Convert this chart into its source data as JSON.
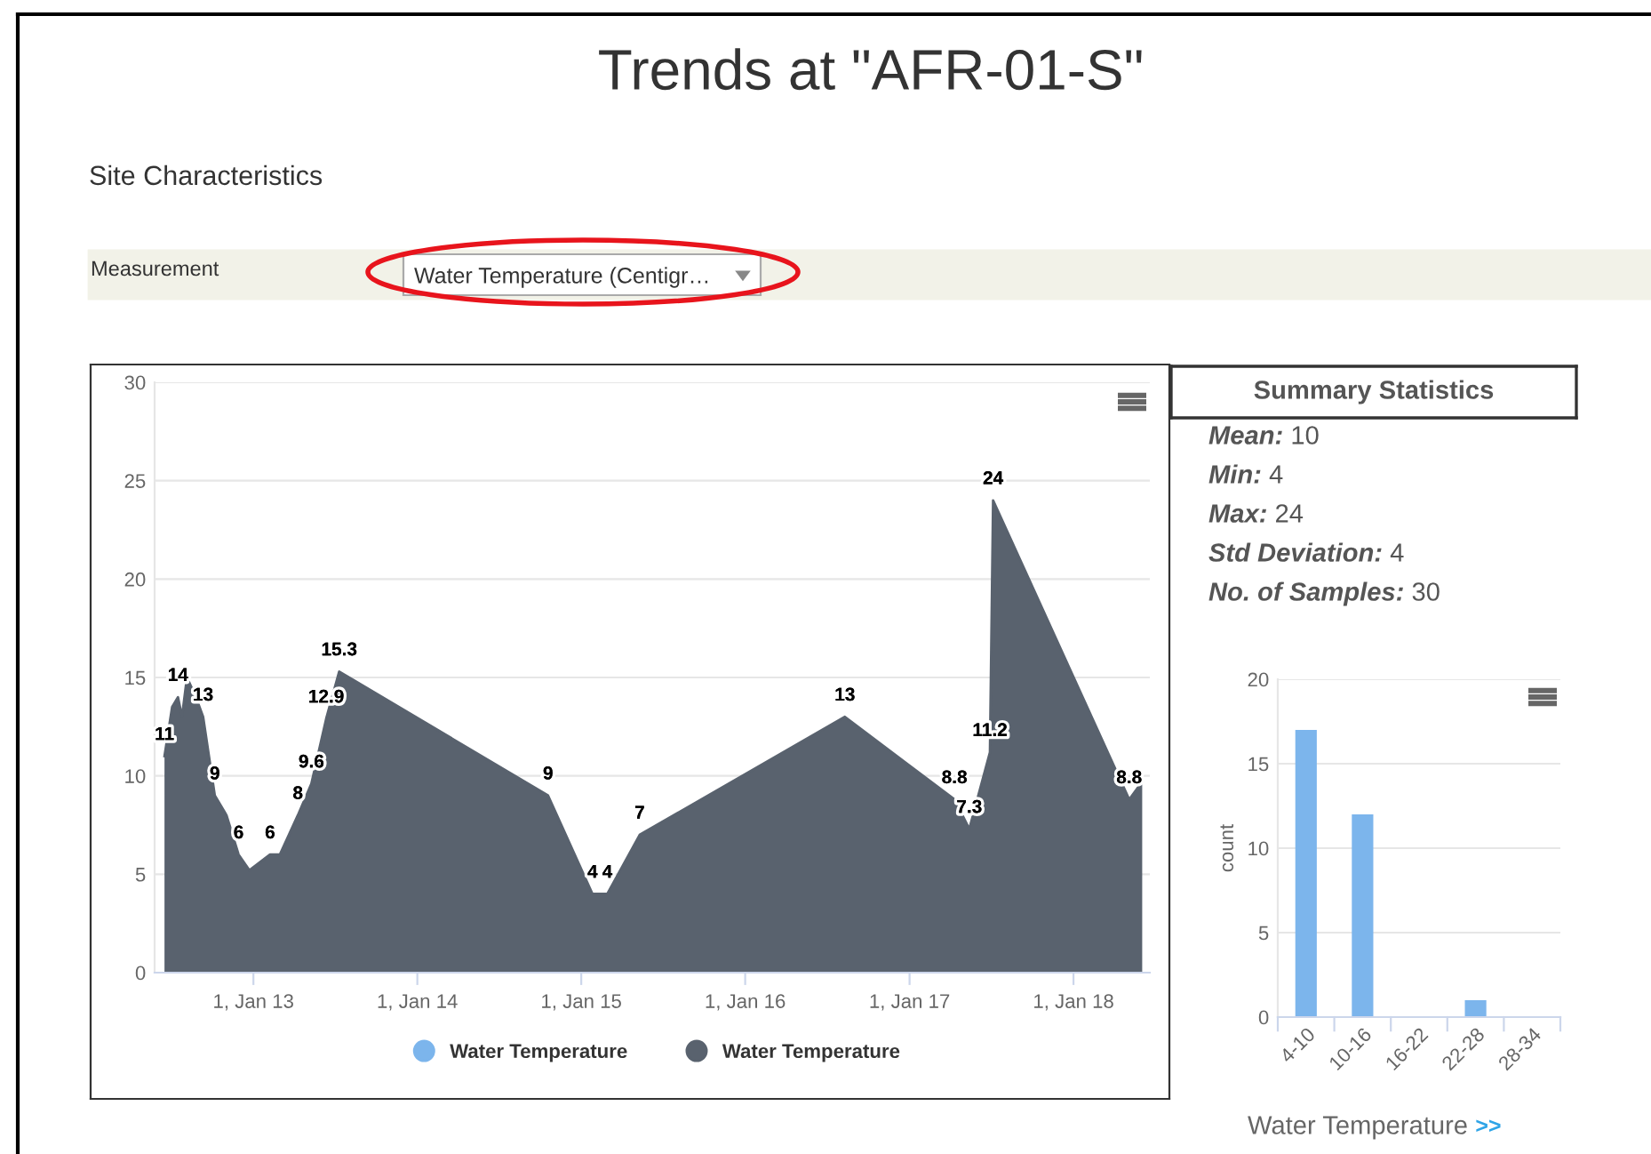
{
  "chart_data": [
    {
      "type": "other",
      "title": "Trends at \"AFR-01-S\"",
      "annotations": [
        "Site Characteristics",
        "Measurement",
        "Water Temperature (Centigr…"
      ]
    },
    {
      "type": "area",
      "x": [
        "2012-06-17",
        "2012-07-04",
        "2012-07-17",
        "2012-07-26",
        "2012-08-06",
        "2012-08-26",
        "2012-09-11",
        "2012-10-07",
        "2012-11-02",
        "2012-11-29",
        "2012-12-23",
        "2013-02-07",
        "2013-03-01",
        "2013-04-10",
        "2013-05-10",
        "2013-06-12",
        "2013-07-11",
        "2014-10-19",
        "2015-01-26",
        "2015-02-28",
        "2015-05-11",
        "2016-08-10",
        "2017-04-11",
        "2017-05-14",
        "2017-06-29",
        "2017-07-06",
        "2018-05-05",
        "2018-06-03"
      ],
      "series": [
        {
          "name": "Water Temperature",
          "color": "#7cb5ec",
          "values": [
            null,
            null,
            null,
            null,
            null,
            null,
            null,
            null,
            null,
            null,
            null,
            null,
            null,
            null,
            null,
            null,
            null,
            null,
            null,
            null,
            null,
            null,
            null,
            null,
            null,
            null,
            null,
            null
          ]
        },
        {
          "name": "Water Temperature",
          "color": "#59626e",
          "values": [
            11,
            13.5,
            14,
            13,
            15,
            14,
            13,
            9,
            8,
            6,
            5.2,
            6,
            6,
            8,
            9.6,
            12.9,
            15.3,
            9,
            4,
            4,
            7,
            13,
            8.8,
            7.3,
            11.2,
            24,
            8.8,
            9.7
          ],
          "value_labels": [
            "11",
            null,
            "14",
            null,
            null,
            null,
            "13",
            "9",
            null,
            "6",
            null,
            "6",
            null,
            "8",
            "9.6",
            "12.9",
            "15.3",
            "9",
            "4",
            "4",
            "7",
            "13",
            "8.8",
            "7.3",
            "11.2",
            "24",
            "8.8",
            null
          ]
        }
      ],
      "xlim": [
        "2012-05-26",
        "2018-06-20"
      ],
      "xticks": [
        {
          "value": "2013-01-01",
          "label": "1, Jan 13"
        },
        {
          "value": "2014-01-01",
          "label": "1, Jan 14"
        },
        {
          "value": "2015-01-01",
          "label": "1, Jan 15"
        },
        {
          "value": "2016-01-01",
          "label": "1, Jan 16"
        },
        {
          "value": "2017-01-01",
          "label": "1, Jan 17"
        },
        {
          "value": "2018-01-01",
          "label": "1, Jan 18"
        }
      ],
      "ylim": [
        0,
        30
      ],
      "yticks": [
        0,
        5,
        10,
        15,
        20,
        25,
        30
      ],
      "grid": "y",
      "legend": "bottom"
    },
    {
      "type": "other",
      "title": "Summary Statistics",
      "annotations": [
        "Mean: 10",
        "Min: 4",
        "Max: 24",
        "Std Deviation: 4",
        "No. of Samples: 30"
      ]
    },
    {
      "type": "bar",
      "categories": [
        "4-10",
        "10-16",
        "16-22",
        "22-28",
        "28-34"
      ],
      "values": [
        17,
        12,
        0,
        1,
        0
      ],
      "color": "#7cb5ec",
      "ylim": [
        0,
        20
      ],
      "yticks": [
        0,
        5,
        10,
        15,
        20
      ],
      "grid": "y",
      "ylabel": "count",
      "xlabel": "Water Temperature",
      "annotations": [
        ">>"
      ]
    }
  ]
}
